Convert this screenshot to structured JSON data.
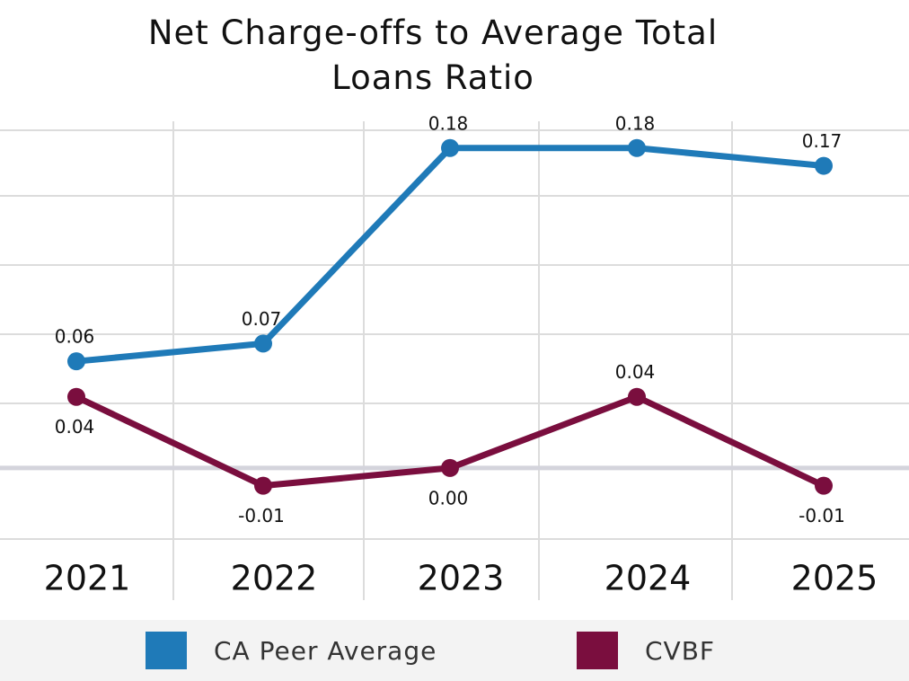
{
  "chart_data": {
    "type": "line",
    "title": "Net Charge-offs to Average Total Loans Ratio",
    "categories": [
      "2021",
      "2022",
      "2023",
      "2024",
      "2025"
    ],
    "series": [
      {
        "name": "CA Peer Average",
        "color": "#1f7ab8",
        "values": [
          0.06,
          0.07,
          0.18,
          0.18,
          0.17
        ]
      },
      {
        "name": "CVBF",
        "color": "#7a0e3e",
        "values": [
          0.04,
          -0.01,
          0.0,
          0.04,
          -0.01
        ],
        "value_labels": [
          "0.04",
          "-0.01",
          "0.00",
          "0.04",
          "-0.01"
        ]
      }
    ],
    "ylim": [
      -0.04,
      0.19
    ],
    "legend": "bottom",
    "grid": true
  }
}
